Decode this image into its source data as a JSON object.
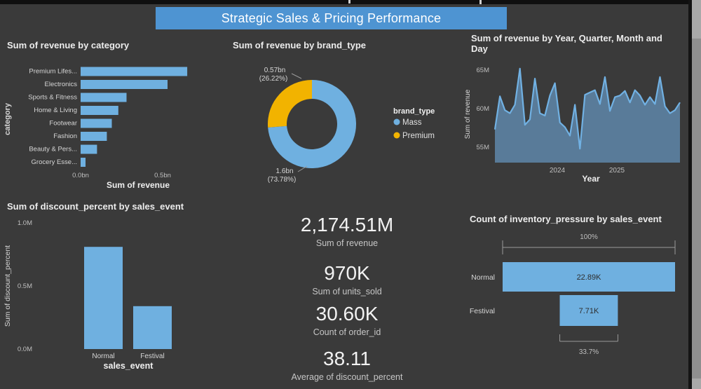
{
  "banner": {
    "title": "Strategic Sales & Pricing Performance"
  },
  "colors": {
    "background": "#3a3a3a",
    "banner_bg": "#4e94d2",
    "bar_blue": "#6fb0e0",
    "accent_yellow": "#f2b300",
    "area_fill": "#5b7e9e",
    "area_line": "#71b1e3",
    "text_primary": "#ececec",
    "text_muted": "#bfbfbf",
    "funnel_value_text": "#2e2e2e"
  },
  "kpis": [
    {
      "value": "2,174.51M",
      "label": "Sum of revenue"
    },
    {
      "value": "970K",
      "label": "Sum of units_sold"
    },
    {
      "value": "30.60K",
      "label": "Count of order_id"
    },
    {
      "value": "38.11",
      "label": "Average of discount_percent"
    }
  ],
  "chart_data": [
    {
      "type": "bar",
      "orientation": "horizontal",
      "title": "Sum of revenue by category",
      "xlabel": "Sum of revenue",
      "ylabel": "category",
      "categories": [
        "Premium Lifes...",
        "Electronics",
        "Sports & Fitness",
        "Home & Living",
        "Footwear",
        "Fashion",
        "Beauty & Pers...",
        "Grocery Esse..."
      ],
      "values_bn": [
        0.65,
        0.53,
        0.28,
        0.23,
        0.19,
        0.16,
        0.1,
        0.03
      ],
      "x_ticks": [
        "0.0bn",
        "0.5bn"
      ],
      "xlim": [
        0,
        0.7
      ],
      "grid": false
    },
    {
      "type": "pie",
      "title": "Sum of revenue by brand_type",
      "legend_title": "brand_type",
      "legend_position": "right",
      "slices": [
        {
          "name": "Mass",
          "value_label": "1.6bn",
          "pct": 73.78,
          "pct_label": "(73.78%)",
          "color": "#6fb0e0"
        },
        {
          "name": "Premium",
          "value_label": "0.57bn",
          "pct": 26.22,
          "pct_label": "(26.22%)",
          "color": "#f2b300"
        }
      ]
    },
    {
      "type": "area",
      "title": "Sum of revenue by Year, Quarter, Month and Day",
      "xlabel": "Year",
      "ylabel": "Sum of revenue",
      "x_ticks": [
        "2024",
        "2025"
      ],
      "y_ticks": [
        "65M",
        "60M",
        "55M"
      ],
      "ylim": [
        53,
        66
      ],
      "grid": false,
      "values_M": [
        57.3,
        61.6,
        59.8,
        59.4,
        60.5,
        65.2,
        57.9,
        58.6,
        63.9,
        59.4,
        59.1,
        61.7,
        63.3,
        58.2,
        57.6,
        56.5,
        60.5,
        54.8,
        61.8,
        62.1,
        62.4,
        60.6,
        64.1,
        59.7,
        61.5,
        61.7,
        62.3,
        60.8,
        62.4,
        61.7,
        60.5,
        61.5,
        60.6,
        64.1,
        60.3,
        59.4,
        59.8,
        60.8
      ]
    },
    {
      "type": "bar",
      "orientation": "vertical",
      "title": "Sum of discount_percent by sales_event",
      "xlabel": "sales_event",
      "ylabel": "Sum of discount_percent",
      "categories": [
        "Normal",
        "Festival"
      ],
      "values_M": [
        0.81,
        0.34
      ],
      "y_ticks": [
        "1.0M",
        "0.5M",
        "0.0M"
      ],
      "ylim": [
        0,
        1.0
      ],
      "grid": false
    },
    {
      "type": "funnel",
      "title": "Count of inventory_pressure by sales_event",
      "categories": [
        "Normal",
        "Festival"
      ],
      "value_labels": [
        "22.89K",
        "7.71K"
      ],
      "pcts": [
        100,
        33.7
      ],
      "top_label": "100%",
      "bottom_label": "33.7%"
    }
  ]
}
